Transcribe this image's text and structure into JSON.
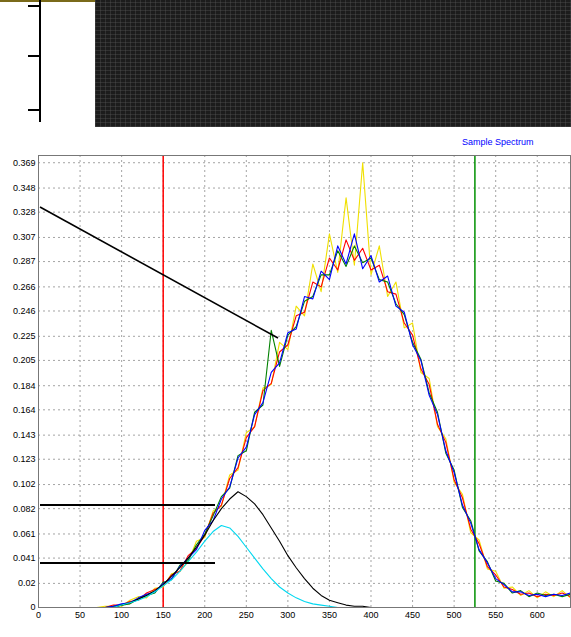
{
  "chart_data": {
    "type": "line",
    "title": "Sample Spectrum",
    "x": [
      0,
      10,
      20,
      30,
      40,
      50,
      60,
      70,
      80,
      90,
      100,
      110,
      120,
      130,
      140,
      150,
      160,
      170,
      180,
      190,
      200,
      210,
      220,
      230,
      240,
      250,
      260,
      270,
      280,
      290,
      300,
      310,
      320,
      330,
      340,
      350,
      360,
      370,
      380,
      390,
      400,
      410,
      420,
      430,
      440,
      450,
      460,
      470,
      480,
      490,
      500,
      510,
      520,
      530,
      540,
      550,
      560,
      570,
      580,
      590,
      600,
      610,
      620,
      630,
      640
    ],
    "series": [
      {
        "color": "#f0e000",
        "values": [
          0,
          0,
          0,
          0,
          0,
          0,
          0,
          0,
          0.001,
          0.001,
          0.001,
          0.006,
          0.009,
          0.008,
          0.016,
          0.017,
          0.028,
          0.03,
          0.038,
          0.055,
          0.058,
          0.08,
          0.084,
          0.11,
          0.114,
          0.145,
          0.15,
          0.182,
          0.185,
          0.22,
          0.214,
          0.25,
          0.242,
          0.285,
          0.262,
          0.31,
          0.278,
          0.34,
          0.284,
          0.369,
          0.276,
          0.3,
          0.258,
          0.27,
          0.232,
          0.236,
          0.195,
          0.19,
          0.15,
          0.14,
          0.104,
          0.094,
          0.062,
          0.056,
          0.032,
          0.03,
          0.016,
          0.017,
          0.01,
          0.014,
          0.008,
          0.013,
          0.009,
          0.014,
          0.008
        ]
      },
      {
        "color": "#ff0000",
        "values": [
          0,
          0,
          0,
          0,
          0,
          0,
          0,
          0,
          0,
          0.002,
          0.002,
          0.005,
          0.006,
          0.012,
          0.015,
          0.018,
          0.027,
          0.03,
          0.043,
          0.049,
          0.06,
          0.078,
          0.085,
          0.107,
          0.116,
          0.141,
          0.15,
          0.18,
          0.186,
          0.212,
          0.218,
          0.242,
          0.245,
          0.27,
          0.266,
          0.29,
          0.28,
          0.305,
          0.288,
          0.298,
          0.28,
          0.284,
          0.262,
          0.26,
          0.236,
          0.226,
          0.198,
          0.185,
          0.152,
          0.137,
          0.106,
          0.091,
          0.065,
          0.053,
          0.034,
          0.027,
          0.017,
          0.015,
          0.011,
          0.012,
          0.009,
          0.011,
          0.01,
          0.012,
          0.009
        ]
      },
      {
        "color": "#008000",
        "values": [
          0,
          0,
          0,
          0,
          0,
          0,
          0,
          0,
          0,
          0.001,
          0.002,
          0.003,
          0.007,
          0.01,
          0.012,
          0.021,
          0.023,
          0.035,
          0.039,
          0.052,
          0.061,
          0.076,
          0.092,
          0.099,
          0.126,
          0.13,
          0.162,
          0.168,
          0.23,
          0.2,
          0.226,
          0.233,
          0.254,
          0.258,
          0.276,
          0.276,
          0.296,
          0.283,
          0.3,
          0.286,
          0.29,
          0.272,
          0.27,
          0.252,
          0.243,
          0.22,
          0.206,
          0.178,
          0.162,
          0.128,
          0.114,
          0.083,
          0.072,
          0.047,
          0.038,
          0.022,
          0.02,
          0.012,
          0.014,
          0.009,
          0.012,
          0.01,
          0.011,
          0.009,
          0.011
        ]
      },
      {
        "color": "#0000ff",
        "values": [
          0,
          0,
          0,
          0,
          0,
          0,
          0,
          0,
          0,
          0.001,
          0.003,
          0.004,
          0.008,
          0.011,
          0.013,
          0.02,
          0.024,
          0.034,
          0.041,
          0.048,
          0.064,
          0.072,
          0.09,
          0.1,
          0.124,
          0.133,
          0.16,
          0.17,
          0.195,
          0.203,
          0.228,
          0.231,
          0.258,
          0.256,
          0.279,
          0.272,
          0.3,
          0.285,
          0.31,
          0.281,
          0.292,
          0.27,
          0.275,
          0.25,
          0.245,
          0.218,
          0.205,
          0.176,
          0.16,
          0.13,
          0.112,
          0.085,
          0.07,
          0.048,
          0.037,
          0.024,
          0.019,
          0.013,
          0.013,
          0.01,
          0.011,
          0.009,
          0.011,
          0.01,
          0.012
        ]
      },
      {
        "color": "#000000",
        "values": [
          0,
          0,
          0,
          0,
          0,
          0,
          0,
          0,
          0,
          0,
          0.002,
          0.004,
          0.007,
          0.01,
          0.014,
          0.019,
          0.026,
          0.033,
          0.041,
          0.05,
          0.06,
          0.072,
          0.082,
          0.09,
          0.096,
          0.092,
          0.086,
          0.077,
          0.066,
          0.055,
          0.043,
          0.033,
          0.024,
          0.016,
          0.01,
          0.006,
          0.004,
          0.002,
          0.001,
          0.001,
          0,
          0,
          0,
          0,
          0,
          0,
          0,
          0,
          0,
          0,
          0,
          0,
          0,
          0,
          0,
          0,
          0,
          0,
          0,
          0,
          0,
          0,
          0,
          0,
          0
        ]
      },
      {
        "color": "#00d8f0",
        "values": [
          0,
          0,
          0,
          0,
          0,
          0,
          0,
          0,
          0,
          0,
          0.002,
          0.004,
          0.006,
          0.009,
          0.013,
          0.018,
          0.023,
          0.03,
          0.038,
          0.046,
          0.055,
          0.063,
          0.068,
          0.066,
          0.059,
          0.05,
          0.041,
          0.032,
          0.024,
          0.017,
          0.012,
          0.008,
          0.005,
          0.003,
          0.002,
          0.001,
          0,
          0,
          0,
          0,
          0,
          0,
          0,
          0,
          0,
          0,
          0,
          0,
          0,
          0,
          0,
          0,
          0,
          0,
          0,
          0,
          0,
          0,
          0,
          0,
          0,
          0,
          0,
          0,
          0
        ]
      }
    ],
    "vertical_lines": [
      {
        "x": 150,
        "color": "#ff0000"
      },
      {
        "x": 525,
        "color": "#009000"
      }
    ],
    "xlim": [
      0,
      640
    ],
    "xticks": [
      0,
      50,
      100,
      150,
      200,
      250,
      300,
      350,
      400,
      450,
      500,
      550,
      600
    ],
    "ylim": [
      0,
      0.375
    ],
    "yticks": [
      0,
      0.02,
      0.041,
      0.061,
      0.082,
      0.102,
      0.123,
      0.143,
      0.164,
      0.184,
      0.205,
      0.225,
      0.246,
      0.266,
      0.287,
      0.307,
      0.328,
      0.348,
      0.369
    ],
    "grid": true
  }
}
